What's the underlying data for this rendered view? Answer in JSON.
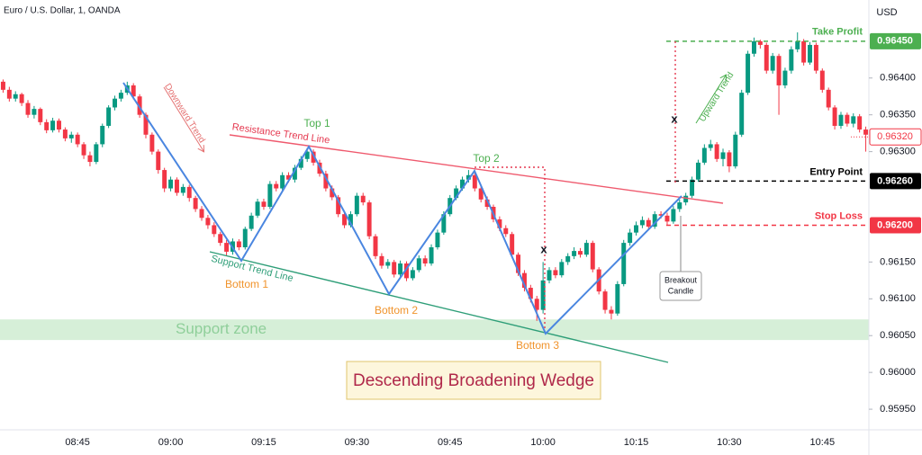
{
  "chart_data": {
    "type": "candlestick",
    "title": "Euro / U.S. Dollar, 1, OANDA",
    "y_axis_label": "USD",
    "categories": [
      null,
      null,
      null,
      null,
      null,
      null,
      null,
      null,
      null,
      null,
      null,
      null,
      "08:45",
      null,
      null,
      null,
      null,
      null,
      null,
      null,
      null,
      null,
      null,
      null,
      null,
      null,
      null,
      "09:00",
      null,
      null,
      null,
      null,
      null,
      null,
      null,
      null,
      null,
      null,
      null,
      null,
      null,
      null,
      "09:15",
      null,
      null,
      null,
      null,
      null,
      null,
      null,
      null,
      null,
      null,
      null,
      null,
      null,
      null,
      "09:30",
      null,
      null,
      null,
      null,
      null,
      null,
      null,
      null,
      null,
      null,
      null,
      null,
      null,
      null,
      "09:45",
      null,
      null,
      null,
      null,
      null,
      null,
      null,
      null,
      null,
      null,
      null,
      null,
      null,
      null,
      "10:00",
      null,
      null,
      null,
      null,
      null,
      null,
      null,
      null,
      null,
      null,
      null,
      null,
      null,
      null,
      "10:15",
      null,
      null,
      null,
      null,
      null,
      null,
      null,
      null,
      null,
      null,
      null,
      null,
      null,
      null,
      "10:30",
      null,
      null,
      null,
      null,
      null,
      null,
      null,
      null,
      null,
      null,
      null,
      null,
      null,
      null,
      "10:45",
      null,
      null,
      null,
      null,
      null,
      null,
      null
    ],
    "candles": [
      [
        0.96395,
        0.96398,
        0.9638,
        0.96384
      ],
      [
        0.96384,
        0.96388,
        0.96368,
        0.96372
      ],
      [
        0.96372,
        0.96382,
        0.96368,
        0.96378
      ],
      [
        0.96378,
        0.9638,
        0.96362,
        0.96366
      ],
      [
        0.96366,
        0.9637,
        0.96346,
        0.9635
      ],
      [
        0.9635,
        0.96362,
        0.96345,
        0.96358
      ],
      [
        0.96358,
        0.9636,
        0.96336,
        0.9634
      ],
      [
        0.9634,
        0.96344,
        0.96325,
        0.96329
      ],
      [
        0.96329,
        0.96346,
        0.96326,
        0.96342
      ],
      [
        0.96342,
        0.96345,
        0.96326,
        0.9633
      ],
      [
        0.9633,
        0.96333,
        0.96314,
        0.96318
      ],
      [
        0.96318,
        0.96327,
        0.96312,
        0.96323
      ],
      [
        0.96323,
        0.96326,
        0.96306,
        0.9631
      ],
      [
        0.9631,
        0.96313,
        0.9629,
        0.96295
      ],
      [
        0.96295,
        0.963,
        0.9628,
        0.96286
      ],
      [
        0.96286,
        0.96313,
        0.96283,
        0.9631
      ],
      [
        0.9631,
        0.96338,
        0.96306,
        0.96335
      ],
      [
        0.96335,
        0.96363,
        0.96332,
        0.9636
      ],
      [
        0.9636,
        0.96376,
        0.96356,
        0.96372
      ],
      [
        0.96372,
        0.96384,
        0.96368,
        0.9638
      ],
      [
        0.9638,
        0.96395,
        0.96377,
        0.9639
      ],
      [
        0.9639,
        0.96393,
        0.96371,
        0.96375
      ],
      [
        0.96375,
        0.96378,
        0.96346,
        0.9635
      ],
      [
        0.9635,
        0.96353,
        0.96318,
        0.96323
      ],
      [
        0.96323,
        0.96326,
        0.96296,
        0.963
      ],
      [
        0.963,
        0.96303,
        0.9627,
        0.96275
      ],
      [
        0.96275,
        0.96278,
        0.96245,
        0.9625
      ],
      [
        0.9625,
        0.96266,
        0.96246,
        0.96262
      ],
      [
        0.96262,
        0.96265,
        0.9624,
        0.96244
      ],
      [
        0.96244,
        0.96256,
        0.9624,
        0.96252
      ],
      [
        0.96252,
        0.96255,
        0.96232,
        0.96237
      ],
      [
        0.96237,
        0.9624,
        0.96218,
        0.96222
      ],
      [
        0.96222,
        0.96226,
        0.96206,
        0.9621
      ],
      [
        0.9621,
        0.96214,
        0.96195,
        0.962
      ],
      [
        0.962,
        0.96204,
        0.96184,
        0.96188
      ],
      [
        0.96188,
        0.96191,
        0.96172,
        0.96176
      ],
      [
        0.96176,
        0.9618,
        0.96158,
        0.96164
      ],
      [
        0.96164,
        0.96182,
        0.9616,
        0.96178
      ],
      [
        0.96178,
        0.96181,
        0.96166,
        0.9617
      ],
      [
        0.9617,
        0.96198,
        0.96167,
        0.96195
      ],
      [
        0.96195,
        0.96217,
        0.96192,
        0.96213
      ],
      [
        0.96213,
        0.96236,
        0.9621,
        0.96232
      ],
      [
        0.96232,
        0.96236,
        0.96221,
        0.96225
      ],
      [
        0.96225,
        0.9626,
        0.96222,
        0.96256
      ],
      [
        0.96256,
        0.9626,
        0.96246,
        0.9625
      ],
      [
        0.9625,
        0.96272,
        0.96247,
        0.96268
      ],
      [
        0.96268,
        0.96272,
        0.96258,
        0.96262
      ],
      [
        0.96262,
        0.96282,
        0.96258,
        0.96278
      ],
      [
        0.96278,
        0.96294,
        0.96275,
        0.9629
      ],
      [
        0.9629,
        0.96305,
        0.96286,
        0.963
      ],
      [
        0.963,
        0.96303,
        0.96281,
        0.96285
      ],
      [
        0.96285,
        0.96289,
        0.96266,
        0.9627
      ],
      [
        0.9627,
        0.96274,
        0.96246,
        0.9625
      ],
      [
        0.9625,
        0.96254,
        0.96234,
        0.96238
      ],
      [
        0.96238,
        0.96241,
        0.96211,
        0.96215
      ],
      [
        0.96215,
        0.96219,
        0.96196,
        0.962
      ],
      [
        0.962,
        0.96219,
        0.96197,
        0.96215
      ],
      [
        0.96215,
        0.96244,
        0.96212,
        0.9624
      ],
      [
        0.9624,
        0.96244,
        0.96227,
        0.96231
      ],
      [
        0.96231,
        0.96234,
        0.96181,
        0.96185
      ],
      [
        0.96185,
        0.96188,
        0.96154,
        0.96158
      ],
      [
        0.96158,
        0.96162,
        0.96141,
        0.96145
      ],
      [
        0.96145,
        0.96154,
        0.96141,
        0.9615
      ],
      [
        0.9615,
        0.96153,
        0.96129,
        0.96133
      ],
      [
        0.96133,
        0.96152,
        0.9613,
        0.96148
      ],
      [
        0.96148,
        0.96151,
        0.96124,
        0.96128
      ],
      [
        0.96128,
        0.96143,
        0.96125,
        0.96139
      ],
      [
        0.96139,
        0.96159,
        0.96136,
        0.96155
      ],
      [
        0.96155,
        0.96159,
        0.96144,
        0.96148
      ],
      [
        0.96148,
        0.96174,
        0.96145,
        0.9617
      ],
      [
        0.9617,
        0.96194,
        0.96167,
        0.9619
      ],
      [
        0.9619,
        0.96219,
        0.96187,
        0.96215
      ],
      [
        0.96215,
        0.96241,
        0.96212,
        0.96237
      ],
      [
        0.96237,
        0.96254,
        0.96234,
        0.9625
      ],
      [
        0.9625,
        0.96266,
        0.96247,
        0.96262
      ],
      [
        0.96262,
        0.96275,
        0.96258,
        0.96268
      ],
      [
        0.96268,
        0.96272,
        0.96246,
        0.9625
      ],
      [
        0.9625,
        0.96254,
        0.96231,
        0.96235
      ],
      [
        0.96235,
        0.96239,
        0.96221,
        0.96225
      ],
      [
        0.96225,
        0.96228,
        0.96204,
        0.96208
      ],
      [
        0.96208,
        0.96212,
        0.96192,
        0.96196
      ],
      [
        0.96196,
        0.962,
        0.96184,
        0.96188
      ],
      [
        0.96188,
        0.96191,
        0.96156,
        0.9616
      ],
      [
        0.9616,
        0.96163,
        0.96131,
        0.96135
      ],
      [
        0.96135,
        0.96139,
        0.9611,
        0.96115
      ],
      [
        0.96115,
        0.96119,
        0.96095,
        0.961
      ],
      [
        0.961,
        0.96104,
        0.9607,
        0.96085
      ],
      [
        0.96085,
        0.9615,
        0.9608,
        0.96125
      ],
      [
        0.96125,
        0.96143,
        0.96121,
        0.96139
      ],
      [
        0.96139,
        0.96143,
        0.96128,
        0.96132
      ],
      [
        0.96132,
        0.96154,
        0.96129,
        0.9615
      ],
      [
        0.9615,
        0.96162,
        0.96146,
        0.96158
      ],
      [
        0.96158,
        0.9617,
        0.96154,
        0.96165
      ],
      [
        0.96165,
        0.96169,
        0.96156,
        0.9616
      ],
      [
        0.9616,
        0.9618,
        0.96157,
        0.96176
      ],
      [
        0.96176,
        0.96179,
        0.96136,
        0.9614
      ],
      [
        0.9614,
        0.96143,
        0.96106,
        0.9611
      ],
      [
        0.9611,
        0.96113,
        0.9608,
        0.96085
      ],
      [
        0.96085,
        0.9609,
        0.96072,
        0.9608
      ],
      [
        0.9608,
        0.96124,
        0.96077,
        0.9612
      ],
      [
        0.9612,
        0.9618,
        0.96117,
        0.96176
      ],
      [
        0.96176,
        0.96195,
        0.96172,
        0.9619
      ],
      [
        0.9619,
        0.96205,
        0.96186,
        0.962
      ],
      [
        0.962,
        0.96212,
        0.96196,
        0.96207
      ],
      [
        0.96207,
        0.9621,
        0.96194,
        0.96198
      ],
      [
        0.96198,
        0.96219,
        0.96195,
        0.96215
      ],
      [
        0.96215,
        0.96219,
        0.96209,
        0.96213
      ],
      [
        0.96213,
        0.96217,
        0.962,
        0.96205
      ],
      [
        0.96205,
        0.96226,
        0.96202,
        0.96222
      ],
      [
        0.96222,
        0.96235,
        0.96218,
        0.96231
      ],
      [
        0.96231,
        0.96244,
        0.96227,
        0.9624
      ],
      [
        0.9624,
        0.96266,
        0.96237,
        0.96262
      ],
      [
        0.96262,
        0.96289,
        0.96259,
        0.96285
      ],
      [
        0.96285,
        0.9631,
        0.96282,
        0.96305
      ],
      [
        0.96305,
        0.96316,
        0.96301,
        0.9631
      ],
      [
        0.9631,
        0.96313,
        0.96286,
        0.9629
      ],
      [
        0.9629,
        0.96304,
        0.9628,
        0.96299
      ],
      [
        0.96299,
        0.96302,
        0.96272,
        0.9628
      ],
      [
        0.9628,
        0.96327,
        0.96277,
        0.96323
      ],
      [
        0.96323,
        0.96384,
        0.9632,
        0.9638
      ],
      [
        0.9638,
        0.96437,
        0.96377,
        0.96433
      ],
      [
        0.96433,
        0.96455,
        0.96429,
        0.9645
      ],
      [
        0.9645,
        0.96452,
        0.9644,
        0.96445
      ],
      [
        0.96445,
        0.96448,
        0.96406,
        0.9641
      ],
      [
        0.9641,
        0.96434,
        0.96406,
        0.9643
      ],
      [
        0.9643,
        0.96433,
        0.9635,
        0.9639
      ],
      [
        0.9639,
        0.96414,
        0.96386,
        0.9641
      ],
      [
        0.9641,
        0.96443,
        0.96406,
        0.96439
      ],
      [
        0.96439,
        0.96462,
        0.96435,
        0.9645
      ],
      [
        0.9645,
        0.96453,
        0.96417,
        0.96421
      ],
      [
        0.96421,
        0.96449,
        0.96418,
        0.96445
      ],
      [
        0.96445,
        0.96448,
        0.96406,
        0.9641
      ],
      [
        0.9641,
        0.96413,
        0.9638,
        0.96384
      ],
      [
        0.96384,
        0.96387,
        0.96356,
        0.9636
      ],
      [
        0.9636,
        0.96363,
        0.9633,
        0.96335
      ],
      [
        0.96335,
        0.96354,
        0.96331,
        0.9635
      ],
      [
        0.9635,
        0.96353,
        0.96334,
        0.96338
      ],
      [
        0.96338,
        0.96352,
        0.96333,
        0.96348
      ],
      [
        0.96348,
        0.96351,
        0.96326,
        0.9633
      ],
      [
        0.9633,
        0.96334,
        0.963,
        0.96323
      ]
    ],
    "up_color": "#089981",
    "down_color": "#f23645",
    "ylim": [
      0.95922,
      0.96506
    ],
    "yticks": [
      {
        "value": 0.9595,
        "label": "0.95950"
      },
      {
        "value": 0.96,
        "label": "0.96000"
      },
      {
        "value": 0.9605,
        "label": "0.96050"
      },
      {
        "value": 0.961,
        "label": "0.96100"
      },
      {
        "value": 0.9615,
        "label": "0.96150"
      },
      {
        "value": 0.963,
        "label": "0.96300"
      },
      {
        "value": 0.9635,
        "label": "0.96350"
      },
      {
        "value": 0.964,
        "label": "0.96400"
      }
    ],
    "levels": [
      {
        "name": "Take Profit",
        "value": 0.9645,
        "label": "0.96450",
        "color": "#4caf50"
      },
      {
        "name": "Entry Point",
        "value": 0.9626,
        "label": "0.96260",
        "color": "#000000"
      },
      {
        "name": "Stop Loss",
        "value": 0.962,
        "label": "0.96200",
        "color": "#f23645"
      }
    ],
    "current_price": {
      "value": 0.9632,
      "label": "0.96320",
      "color": "#f23645"
    },
    "support_zone": {
      "name": "Support zone",
      "range": [
        0.96044,
        0.96072
      ],
      "color": "#d6efd8"
    },
    "annotations": {
      "top1": "Top 1",
      "top2": "Top 2",
      "bottom1": "Bottom 1",
      "bottom2": "Bottom 2",
      "bottom3": "Bottom 3",
      "resistance": "Resistance Trend Line",
      "support": "Support Trend Line",
      "downward": "Downward Trend",
      "upward": "Upward Trend",
      "pattern": "Descending Broadening Wedge",
      "breakout": [
        "Breakout",
        "Candle"
      ],
      "marks": [
        "x",
        "x"
      ]
    }
  }
}
